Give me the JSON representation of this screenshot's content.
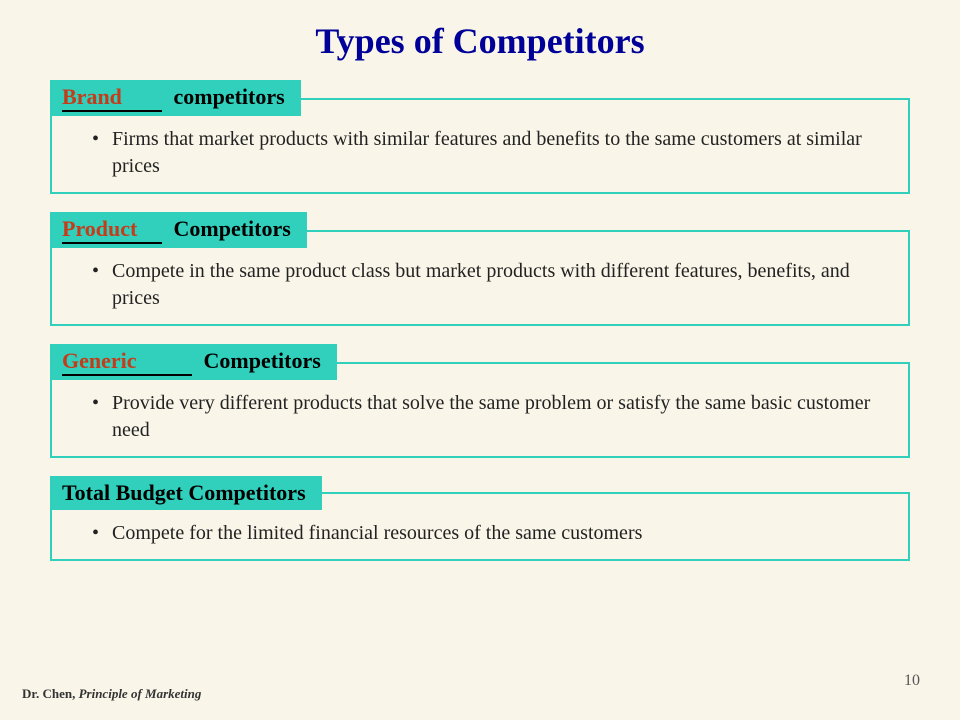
{
  "title": "Types of Competitors",
  "blocks": [
    {
      "fillIn": "Brand",
      "hasBlank": true,
      "blankWide": false,
      "label": "competitors",
      "body": "Firms that market products with similar features and benefits to the same customers at similar prices"
    },
    {
      "fillIn": "Product",
      "hasBlank": true,
      "blankWide": false,
      "label": "Competitors",
      "body": "Compete in the same product class but market products with different features, benefits, and prices"
    },
    {
      "fillIn": "Generic",
      "hasBlank": true,
      "blankWide": true,
      "label": "Competitors",
      "body": "Provide very different products that solve the same problem or satisfy the same basic customer need"
    },
    {
      "fillIn": "",
      "hasBlank": false,
      "blankWide": false,
      "label": "Total Budget Competitors",
      "body": "Compete for the limited financial resources of the same customers"
    }
  ],
  "footer": {
    "author": "Dr. Chen,",
    "course": "Principle of Marketing",
    "page": "10"
  },
  "style": {
    "title_color": "#000099",
    "accent_color": "#30d0bc",
    "fillin_color": "#c43c1a",
    "background_color": "#f9f5e8",
    "title_fontsize": 36,
    "header_fontsize": 22,
    "body_fontsize": 20
  }
}
